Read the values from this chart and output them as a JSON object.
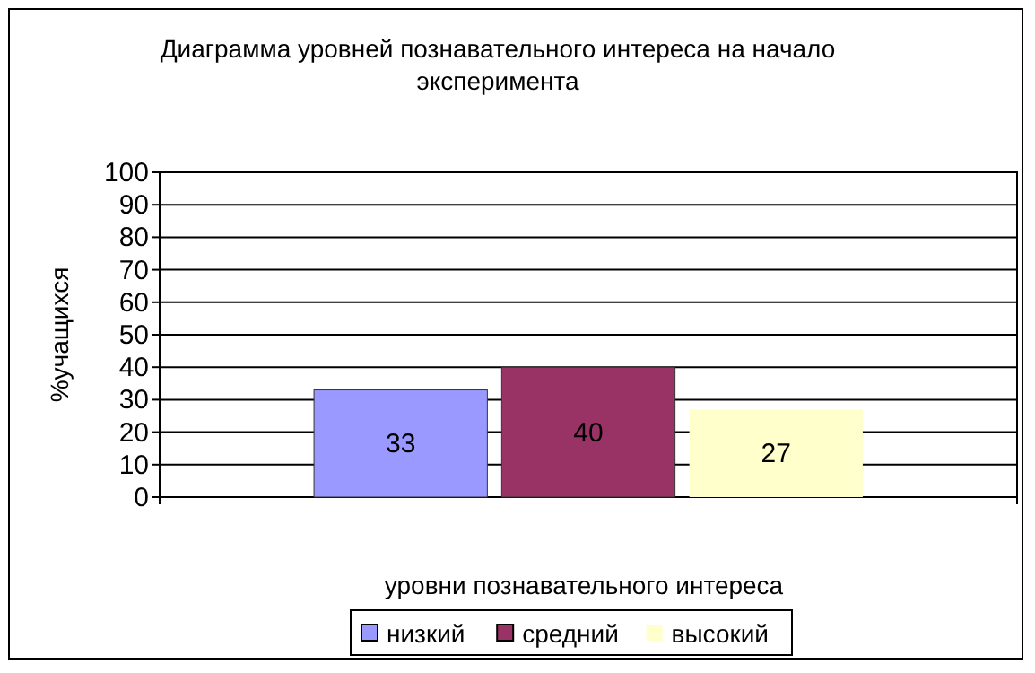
{
  "chart_data": {
    "type": "bar",
    "title": "Диаграмма уровней познавательного интереса на начало эксперимента",
    "xlabel": "уровни познавательного интереса",
    "ylabel": "%учащихся",
    "categories": [
      null
    ],
    "series": [
      {
        "name": "низкий",
        "color": "#9999ff",
        "values": [
          33
        ]
      },
      {
        "name": "средний",
        "color": "#993366",
        "values": [
          40
        ]
      },
      {
        "name": "высокий",
        "color": "#ffffcc",
        "values": [
          27
        ]
      }
    ],
    "ylim": [
      0,
      100
    ],
    "yticks": [
      0,
      10,
      20,
      30,
      40,
      50,
      60,
      70,
      80,
      90,
      100
    ],
    "grid": "y",
    "legend": "bottom",
    "data_labels": true
  }
}
